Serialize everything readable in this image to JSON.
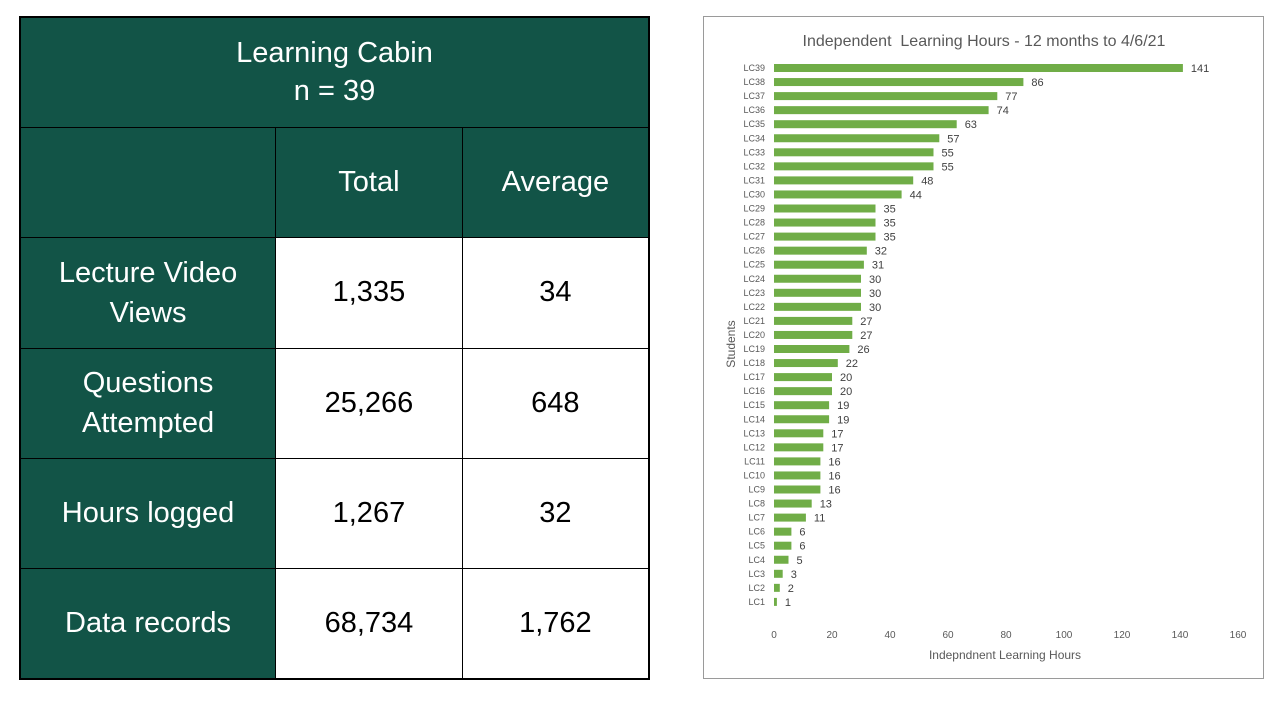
{
  "table": {
    "title_line1": "Learning Cabin",
    "title_line2": "n = 39",
    "header_total": "Total",
    "header_average": "Average",
    "rows": [
      {
        "label_line1": "Lecture Video",
        "label_line2": "Views",
        "total": "1,335",
        "average": "34"
      },
      {
        "label_line1": "Questions",
        "label_line2": "Attempted",
        "total": "25,266",
        "average": "648"
      },
      {
        "label_line1": "Hours logged",
        "label_line2": "",
        "total": "1,267",
        "average": "32"
      },
      {
        "label_line1": "Data records",
        "label_line2": "",
        "total": "68,734",
        "average": "1,762"
      }
    ],
    "colors": {
      "dark_fill": "#125447",
      "dark_text": "#ffffff",
      "light_fill": "#ffffff"
    }
  },
  "chart_data": {
    "type": "bar",
    "orientation": "horizontal",
    "title": "Independent  Learning Hours - 12 months to 4/6/21",
    "xlabel": "Indepndnent Learning Hours",
    "ylabel": "Students",
    "xlim": [
      0,
      160
    ],
    "xticks": [
      0,
      20,
      40,
      60,
      80,
      100,
      120,
      140,
      160
    ],
    "grid": false,
    "legend": "none",
    "bar_color": "#70ad47",
    "categories": [
      "LC1",
      "LC2",
      "LC3",
      "LC4",
      "LC5",
      "LC6",
      "LC7",
      "LC8",
      "LC9",
      "LC10",
      "LC11",
      "LC12",
      "LC13",
      "LC14",
      "LC15",
      "LC16",
      "LC17",
      "LC18",
      "LC19",
      "LC20",
      "LC21",
      "LC22",
      "LC23",
      "LC24",
      "LC25",
      "LC26",
      "LC27",
      "LC28",
      "LC29",
      "LC30",
      "LC31",
      "LC32",
      "LC33",
      "LC34",
      "LC35",
      "LC36",
      "LC37",
      "LC38",
      "LC39"
    ],
    "values": [
      1,
      2,
      3,
      5,
      6,
      6,
      11,
      13,
      16,
      16,
      16,
      17,
      17,
      19,
      19,
      20,
      20,
      22,
      26,
      27,
      27,
      30,
      30,
      30,
      31,
      32,
      35,
      35,
      35,
      44,
      48,
      55,
      55,
      57,
      63,
      74,
      77,
      86,
      141
    ]
  }
}
